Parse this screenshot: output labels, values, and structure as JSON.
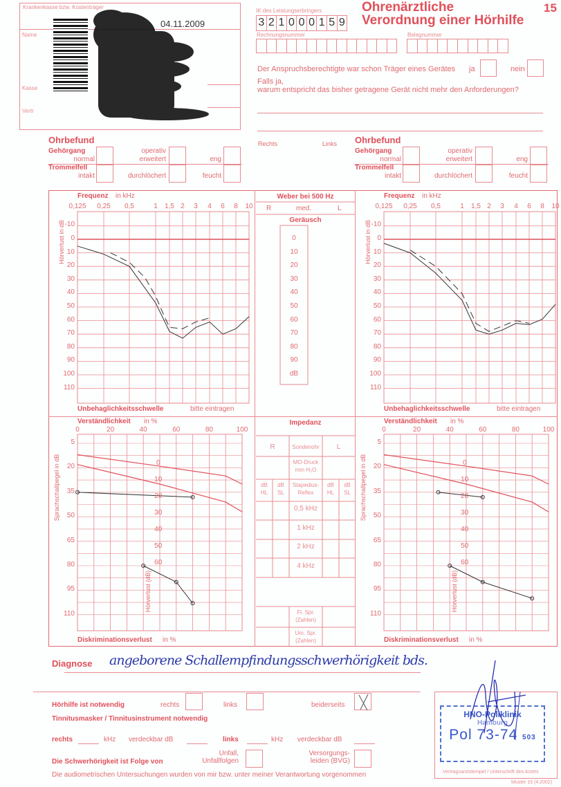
{
  "header": {
    "insurer_label": "Krankenkasse bzw. Kostenträger",
    "name_label": "Name",
    "kasse_label": "Kasse",
    "vertr_label": "Vertr",
    "date": "04.11.2009",
    "ik_label": "IK des Leistungserbringers",
    "ik_digits": [
      "3",
      "2",
      "1",
      "0",
      "0",
      "0",
      "1",
      "5",
      "9"
    ],
    "rechnung_label": "Rechnungsnummer",
    "beleg_label": "Belegnummer",
    "title1": "Ohrenärztliche",
    "title2": "Verordnung einer Hörhilfe",
    "form_no": "15",
    "question": "Der Anspruchsberechtigte war schon Träger eines Gerätes",
    "ja": "ja",
    "nein": "nein",
    "falls1": "Falls ja,",
    "falls2": "warum entspricht das bisher getragene Gerät nicht mehr den Anforderungen?"
  },
  "ohrbefund": {
    "title": "Ohrbefund",
    "gehoergang": "Gehörgang",
    "normal": "normal",
    "operativ": "operativ",
    "erweitert": "erweitert",
    "eng": "eng",
    "trommelfell": "Trommelfell",
    "intakt": "intakt",
    "durchloechert": "durchlöchert",
    "feucht": "feucht",
    "rechts": "Rechts",
    "links": "Links"
  },
  "audiogram": {
    "freq_label": "Frequenz",
    "freq_unit": "in kHz",
    "y_label": "Hörverlust in dB",
    "uncomfort": "Unbehaglichkeitsschwelle",
    "uncomfort2": "bitte eintragen",
    "freq_ticks": [
      "0,125",
      "0,25",
      "0,5",
      "1",
      "1,5",
      "2",
      "3",
      "4",
      "6",
      "8",
      "10"
    ],
    "db_ticks": [
      "-10",
      "0",
      "10",
      "20",
      "30",
      "40",
      "50",
      "60",
      "70",
      "80",
      "90",
      "100",
      "110"
    ],
    "right_ear": {
      "air": [
        [
          0.125,
          5
        ],
        [
          0.25,
          11
        ],
        [
          0.5,
          20
        ],
        [
          1,
          47
        ],
        [
          1.5,
          68
        ],
        [
          2,
          73
        ],
        [
          3,
          65
        ],
        [
          4,
          61
        ],
        [
          6,
          70
        ],
        [
          8,
          66
        ],
        [
          10,
          57
        ]
      ],
      "bone": [
        [
          0.3,
          10
        ],
        [
          0.5,
          17
        ],
        [
          0.75,
          28
        ],
        [
          1,
          42
        ],
        [
          1.25,
          55
        ],
        [
          1.5,
          65
        ],
        [
          2,
          66
        ],
        [
          3,
          61
        ],
        [
          4,
          58
        ]
      ]
    },
    "left_ear": {
      "air": [
        [
          0.125,
          3
        ],
        [
          0.25,
          10
        ],
        [
          0.5,
          25
        ],
        [
          1,
          45
        ],
        [
          1.5,
          67
        ],
        [
          2,
          70
        ],
        [
          3,
          67
        ],
        [
          4,
          62
        ],
        [
          6,
          63
        ],
        [
          8,
          59
        ],
        [
          10,
          48
        ]
      ],
      "bone": [
        [
          0.25,
          8
        ],
        [
          0.5,
          20
        ],
        [
          1,
          40
        ],
        [
          1.5,
          62
        ],
        [
          2,
          68
        ],
        [
          3,
          64
        ],
        [
          4,
          60
        ],
        [
          6,
          62
        ]
      ]
    }
  },
  "weber": {
    "title": "Weber bei 500 Hz",
    "r": "R",
    "med": "med.",
    "l": "L",
    "geraeusch": "Geräusch",
    "ticks": [
      "0",
      "10",
      "20",
      "30",
      "40",
      "50",
      "60",
      "70",
      "80",
      "90",
      "dB"
    ]
  },
  "speech": {
    "x_label": "Verständlichkeit",
    "x_unit": "in %",
    "y_label": "Sprachschallpegel in dB",
    "bottom": "Diskriminationsverlust",
    "bottom_unit": "in %",
    "vert_label": "Hörverlust (dB)",
    "x_ticks": [
      "0",
      "20",
      "40",
      "60",
      "80",
      "100"
    ],
    "y_ticks": [
      "5",
      "20",
      "35",
      "50",
      "65",
      "80",
      "95",
      "110"
    ],
    "hv_ticks": [
      "0",
      "10",
      "20",
      "30",
      "40",
      "50",
      "60"
    ],
    "right_ear": {
      "numbers": [
        [
          0,
          35
        ],
        [
          70,
          38
        ]
      ],
      "words": [
        [
          40,
          80
        ],
        [
          60,
          90
        ],
        [
          70,
          103
        ]
      ]
    },
    "left_ear": {
      "numbers": [
        [
          33,
          35
        ],
        [
          60,
          38
        ]
      ],
      "words": [
        [
          40,
          80
        ],
        [
          60,
          90
        ],
        [
          90,
          100
        ]
      ]
    }
  },
  "impedanz": {
    "title": "Impedanz",
    "r": "R",
    "sonde": "Sondenohr",
    "l": "L",
    "mo1": "MO-Druck",
    "mo2": "mm H₂O",
    "db": "dB",
    "hl": "HL",
    "sl": "SL",
    "stap1": "Stapedius-",
    "stap2": "Reflex",
    "rows": [
      "0,5 kHz",
      "1 kHz",
      "2 kHz",
      "4 kHz"
    ],
    "fl1": "Fl. Spr.",
    "fl2": "(Zahlen)",
    "um1": "Um. Spr.",
    "um2": "(Zahlen)"
  },
  "bottom": {
    "diagnose_label": "Diagnose",
    "diagnose_text": "angeborene Schallempfindungsschwerhörigkeit bds.",
    "hoerhilfe": "Hörhilfe ist notwendig",
    "rechts": "rechts",
    "links": "links",
    "beiderseits": "beiderseits",
    "beiderseits_checked": true,
    "tinnitus": "Tinnitusmasker / Tinnitusinstrument notwendig",
    "t_rechts": "rechts",
    "khz": "kHz",
    "verdeckbar": "verdeckbar dB",
    "t_links": "links",
    "folge": "Die Schwerhörigkeit ist Folge von",
    "unfall1": "Unfall,",
    "unfall2": "Unfallfolgen",
    "vers1": "Versorgungs-",
    "vers2": "leiden (BVG)",
    "audiometric": "Die audiometrischen Untersuchungen wurden von mir bzw. unter meiner Verantwortung vorgenommen",
    "stamp_label": "Vertragsarztstempel / Unterschrift des Arztes",
    "stamp1": "HNO-Poliklinik",
    "stamp2": "Hamburg",
    "stamp3": "Pol 73-74",
    "stamp4": "503",
    "muster": "Muster 15 (4.2002)"
  },
  "colors": {
    "form_red": "#e0505a",
    "ink": "#333333",
    "stamp_blue": "#3050c0"
  }
}
